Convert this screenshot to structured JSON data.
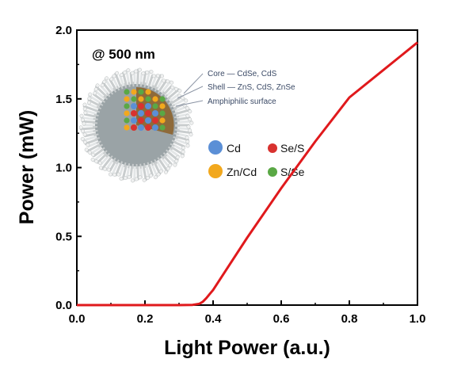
{
  "chart_data": {
    "type": "line",
    "xlabel": "Light Power (a.u.)",
    "ylabel": "Power (mW)",
    "xlim": [
      0.0,
      1.0
    ],
    "ylim": [
      0.0,
      2.0
    ],
    "xticks": [
      "0.0",
      "0.2",
      "0.4",
      "0.6",
      "0.8",
      "1.0"
    ],
    "yticks": [
      "0.0",
      "0.5",
      "1.0",
      "1.5",
      "2.0"
    ],
    "annotation": "@ 500 nm",
    "grid": false,
    "series": [
      {
        "color": "#e0191c",
        "x": [
          0.0,
          0.1,
          0.2,
          0.3,
          0.34,
          0.36,
          0.37,
          0.38,
          0.39,
          0.4,
          0.45,
          0.5,
          0.6,
          0.7,
          0.8,
          0.9,
          1.0
        ],
        "y": [
          0.0,
          0.0,
          0.0,
          0.0,
          0.002,
          0.01,
          0.025,
          0.05,
          0.08,
          0.11,
          0.3,
          0.49,
          0.85,
          1.19,
          1.51,
          1.71,
          1.91
        ]
      }
    ]
  },
  "inset": {
    "core_label": "Core — CdSe, CdS",
    "shell_label": "Shell — ZnS, CdS, ZnSe",
    "surface_label": "Amphiphilic surface",
    "legend": [
      {
        "label": "Cd",
        "color": "#5b8fd6"
      },
      {
        "label": "Se/S",
        "color": "#d8322f"
      },
      {
        "label": "Zn/Cd",
        "color": "#f2a81d"
      },
      {
        "label": "S/Se",
        "color": "#5aa845"
      }
    ]
  }
}
